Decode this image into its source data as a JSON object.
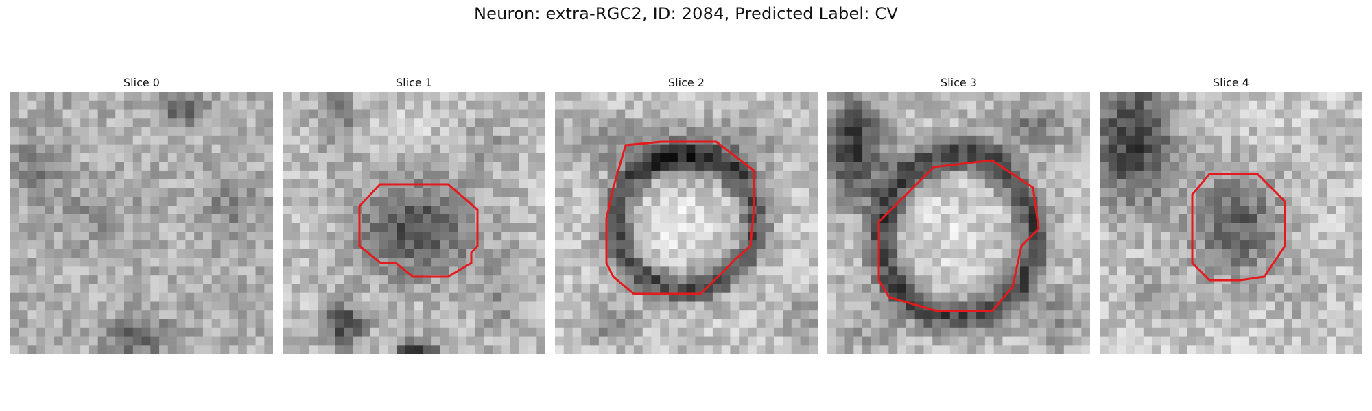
{
  "figure": {
    "title": "Neuron: extra-RGC2, ID: 2084, Predicted Label: CV"
  },
  "colors": {
    "contour": "#e41a1c",
    "background": "#ffffff"
  },
  "panels": [
    {
      "title": "Slice 0",
      "has_contour": false
    },
    {
      "title": "Slice 1",
      "has_contour": true
    },
    {
      "title": "Slice 2",
      "has_contour": true
    },
    {
      "title": "Slice 3",
      "has_contour": true
    },
    {
      "title": "Slice 4",
      "has_contour": true
    }
  ]
}
